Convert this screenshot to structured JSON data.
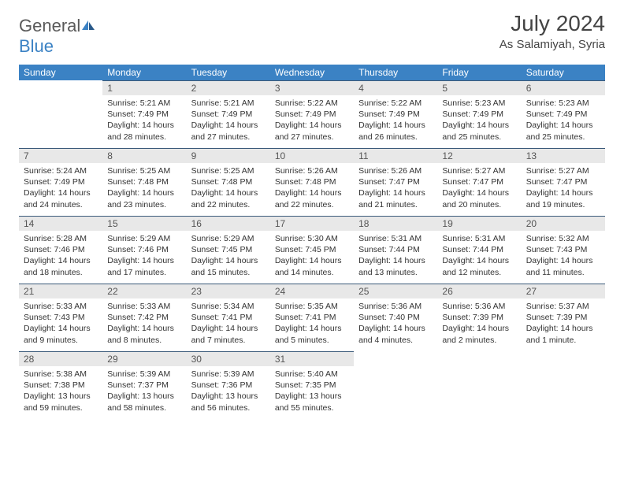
{
  "logo": {
    "text1": "General",
    "text2": "Blue"
  },
  "title": "July 2024",
  "location": "As Salamiyah, Syria",
  "colors": {
    "header_bg": "#3b82c4",
    "header_text": "#ffffff",
    "daynum_bg": "#e8e8e8",
    "daynum_text": "#555555",
    "body_text": "#333333",
    "border": "#3b5a7a"
  },
  "weekdays": [
    "Sunday",
    "Monday",
    "Tuesday",
    "Wednesday",
    "Thursday",
    "Friday",
    "Saturday"
  ],
  "weeks": [
    [
      null,
      {
        "n": "1",
        "sr": "5:21 AM",
        "ss": "7:49 PM",
        "dl": "14 hours and 28 minutes."
      },
      {
        "n": "2",
        "sr": "5:21 AM",
        "ss": "7:49 PM",
        "dl": "14 hours and 27 minutes."
      },
      {
        "n": "3",
        "sr": "5:22 AM",
        "ss": "7:49 PM",
        "dl": "14 hours and 27 minutes."
      },
      {
        "n": "4",
        "sr": "5:22 AM",
        "ss": "7:49 PM",
        "dl": "14 hours and 26 minutes."
      },
      {
        "n": "5",
        "sr": "5:23 AM",
        "ss": "7:49 PM",
        "dl": "14 hours and 25 minutes."
      },
      {
        "n": "6",
        "sr": "5:23 AM",
        "ss": "7:49 PM",
        "dl": "14 hours and 25 minutes."
      }
    ],
    [
      {
        "n": "7",
        "sr": "5:24 AM",
        "ss": "7:49 PM",
        "dl": "14 hours and 24 minutes."
      },
      {
        "n": "8",
        "sr": "5:25 AM",
        "ss": "7:48 PM",
        "dl": "14 hours and 23 minutes."
      },
      {
        "n": "9",
        "sr": "5:25 AM",
        "ss": "7:48 PM",
        "dl": "14 hours and 22 minutes."
      },
      {
        "n": "10",
        "sr": "5:26 AM",
        "ss": "7:48 PM",
        "dl": "14 hours and 22 minutes."
      },
      {
        "n": "11",
        "sr": "5:26 AM",
        "ss": "7:47 PM",
        "dl": "14 hours and 21 minutes."
      },
      {
        "n": "12",
        "sr": "5:27 AM",
        "ss": "7:47 PM",
        "dl": "14 hours and 20 minutes."
      },
      {
        "n": "13",
        "sr": "5:27 AM",
        "ss": "7:47 PM",
        "dl": "14 hours and 19 minutes."
      }
    ],
    [
      {
        "n": "14",
        "sr": "5:28 AM",
        "ss": "7:46 PM",
        "dl": "14 hours and 18 minutes."
      },
      {
        "n": "15",
        "sr": "5:29 AM",
        "ss": "7:46 PM",
        "dl": "14 hours and 17 minutes."
      },
      {
        "n": "16",
        "sr": "5:29 AM",
        "ss": "7:45 PM",
        "dl": "14 hours and 15 minutes."
      },
      {
        "n": "17",
        "sr": "5:30 AM",
        "ss": "7:45 PM",
        "dl": "14 hours and 14 minutes."
      },
      {
        "n": "18",
        "sr": "5:31 AM",
        "ss": "7:44 PM",
        "dl": "14 hours and 13 minutes."
      },
      {
        "n": "19",
        "sr": "5:31 AM",
        "ss": "7:44 PM",
        "dl": "14 hours and 12 minutes."
      },
      {
        "n": "20",
        "sr": "5:32 AM",
        "ss": "7:43 PM",
        "dl": "14 hours and 11 minutes."
      }
    ],
    [
      {
        "n": "21",
        "sr": "5:33 AM",
        "ss": "7:43 PM",
        "dl": "14 hours and 9 minutes."
      },
      {
        "n": "22",
        "sr": "5:33 AM",
        "ss": "7:42 PM",
        "dl": "14 hours and 8 minutes."
      },
      {
        "n": "23",
        "sr": "5:34 AM",
        "ss": "7:41 PM",
        "dl": "14 hours and 7 minutes."
      },
      {
        "n": "24",
        "sr": "5:35 AM",
        "ss": "7:41 PM",
        "dl": "14 hours and 5 minutes."
      },
      {
        "n": "25",
        "sr": "5:36 AM",
        "ss": "7:40 PM",
        "dl": "14 hours and 4 minutes."
      },
      {
        "n": "26",
        "sr": "5:36 AM",
        "ss": "7:39 PM",
        "dl": "14 hours and 2 minutes."
      },
      {
        "n": "27",
        "sr": "5:37 AM",
        "ss": "7:39 PM",
        "dl": "14 hours and 1 minute."
      }
    ],
    [
      {
        "n": "28",
        "sr": "5:38 AM",
        "ss": "7:38 PM",
        "dl": "13 hours and 59 minutes."
      },
      {
        "n": "29",
        "sr": "5:39 AM",
        "ss": "7:37 PM",
        "dl": "13 hours and 58 minutes."
      },
      {
        "n": "30",
        "sr": "5:39 AM",
        "ss": "7:36 PM",
        "dl": "13 hours and 56 minutes."
      },
      {
        "n": "31",
        "sr": "5:40 AM",
        "ss": "7:35 PM",
        "dl": "13 hours and 55 minutes."
      },
      null,
      null,
      null
    ]
  ]
}
